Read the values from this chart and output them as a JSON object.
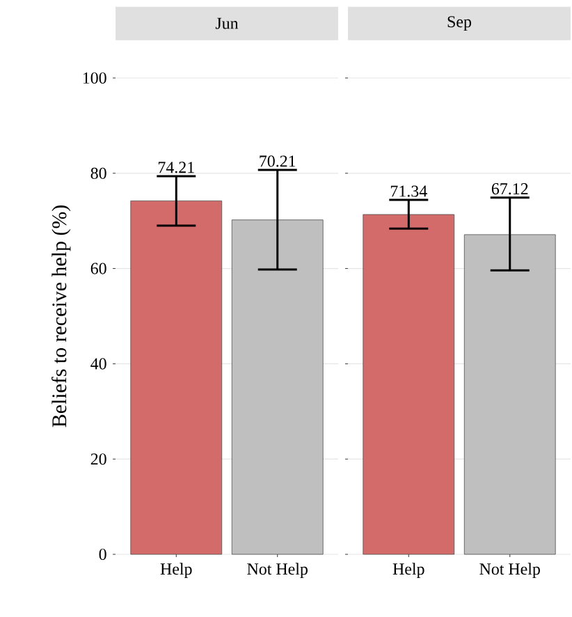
{
  "chart_data": [
    {
      "type": "bar",
      "title": "Jun",
      "ylabel": "Beliefs to receive help (%)",
      "categories": [
        "Help",
        "Not Help"
      ],
      "values": [
        74.21,
        70.21
      ],
      "colors": [
        "#d46b6b",
        "#bfbfbf"
      ],
      "errors": [
        [
          69.0,
          79.4
        ],
        [
          59.8,
          80.7
        ]
      ],
      "data_labels": true,
      "ylim": [
        0,
        100
      ],
      "yticks": [
        0,
        20,
        40,
        60,
        80,
        100
      ],
      "grid": "y"
    },
    {
      "type": "bar",
      "title": "Sep",
      "categories": [
        "Help",
        "Not Help"
      ],
      "values": [
        71.34,
        67.12
      ],
      "colors": [
        "#d46b6b",
        "#bfbfbf"
      ],
      "errors": [
        [
          68.4,
          74.4
        ],
        [
          59.6,
          74.9
        ]
      ],
      "data_labels": true,
      "ylim": [
        0,
        100
      ],
      "yticks": [
        0,
        20,
        40,
        60,
        80,
        100
      ],
      "grid": "y",
      "tick_labels": "x"
    }
  ]
}
